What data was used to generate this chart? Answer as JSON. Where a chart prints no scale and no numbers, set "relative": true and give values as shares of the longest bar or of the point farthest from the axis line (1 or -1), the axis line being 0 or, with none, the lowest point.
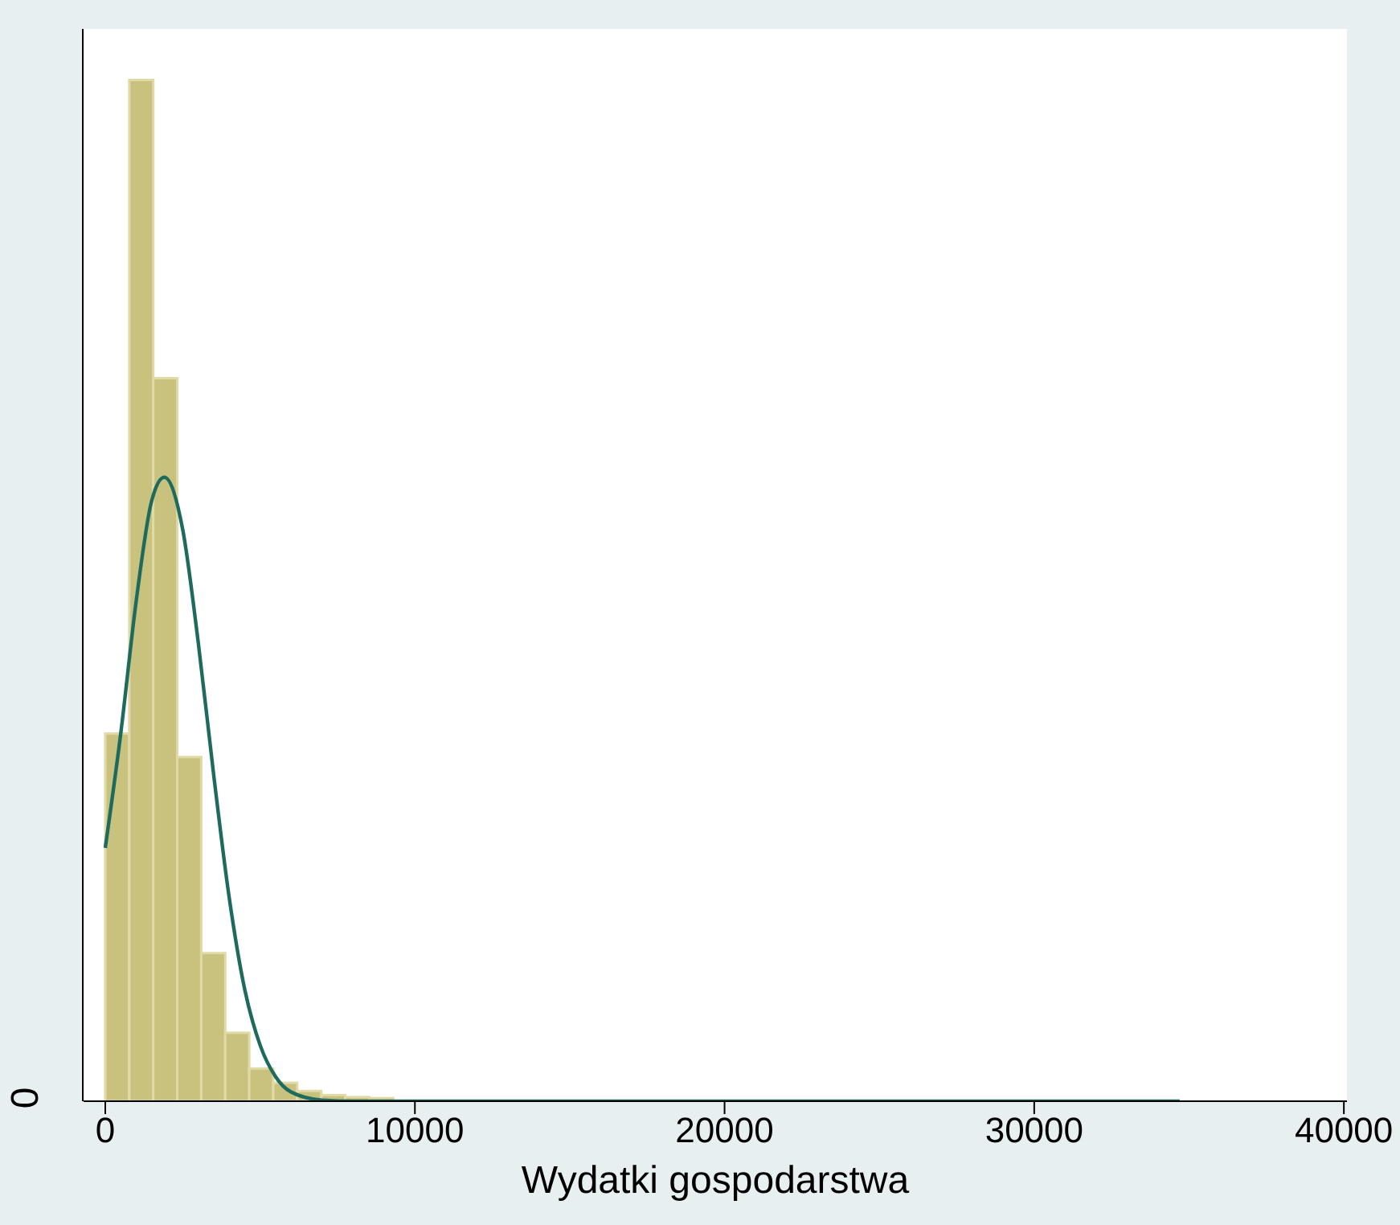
{
  "chart_data": {
    "type": "histogram",
    "relative": true,
    "xlabel": "Wydatki gospodarstwa",
    "bins": [
      0,
      775,
      1550,
      2325,
      3100,
      3875,
      4650,
      5425,
      6200,
      6975,
      7750,
      8525,
      9300
    ],
    "values": [
      0.36,
      1.0,
      0.708,
      0.337,
      0.145,
      0.067,
      0.032,
      0.018,
      0.01,
      0.006,
      0.004,
      0.003
    ],
    "color": "#c9c27f",
    "series": [
      {
        "type": "line",
        "color": "#1e6b5e",
        "x": [
          0,
          500,
          1000,
          1500,
          1906,
          2500,
          3000,
          3500,
          4000,
          4500,
          5000,
          5500,
          6000,
          7000,
          8000,
          34700
        ],
        "values": [
          0.248,
          0.36,
          0.49,
          0.588,
          0.611,
          0.56,
          0.45,
          0.32,
          0.2,
          0.11,
          0.055,
          0.024,
          0.009,
          0.001,
          0,
          0
        ]
      }
    ],
    "xlim": [
      -700,
      40100
    ],
    "xticks": [
      0,
      10000,
      20000,
      30000,
      40000
    ],
    "annotations": [
      "0"
    ],
    "grid": false,
    "legend": false,
    "marker": "none",
    "line_style": "solid"
  }
}
